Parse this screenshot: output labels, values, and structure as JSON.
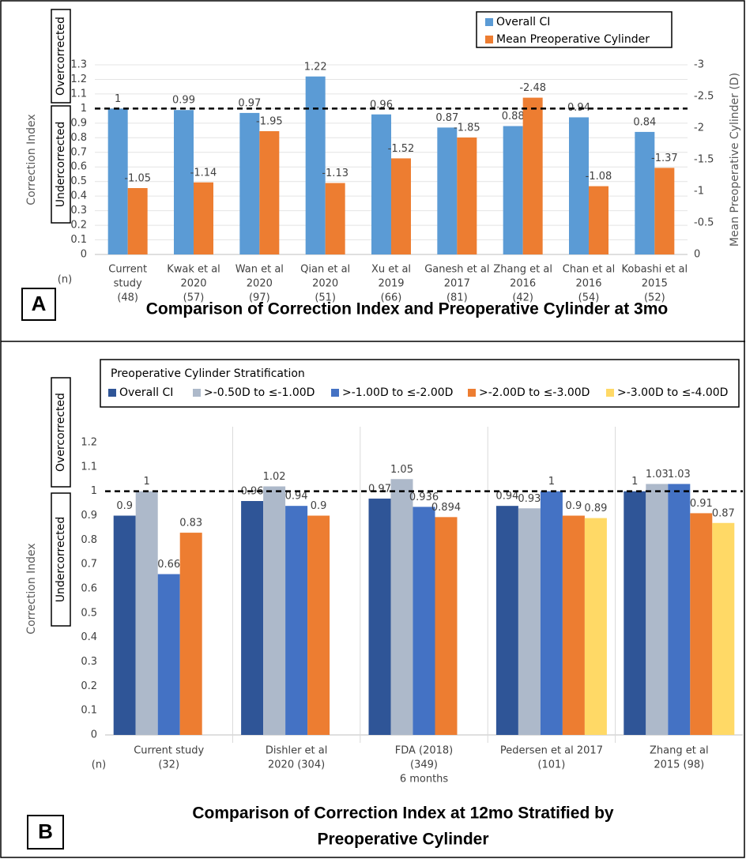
{
  "chart_data": [
    {
      "type": "bar",
      "panel_label": "A",
      "title": "Comparison of Correction Index and Preoperative Cylinder at 3mo",
      "y_label": "Correction Index",
      "y2_label": "Mean Preoperative Cylinder (D)",
      "n_label": "(n)",
      "annotations": [
        "Overcorrected",
        "Undercorrected"
      ],
      "reference_line": 1,
      "categories": [
        [
          "Current",
          "study",
          "(48)"
        ],
        [
          "Kwak et al",
          "2020",
          "(57)"
        ],
        [
          "Wan et al",
          "2020",
          "(97)"
        ],
        [
          "Qian et al",
          "2020",
          "(51)"
        ],
        [
          "Xu et al",
          "2019",
          "(66)"
        ],
        [
          "Ganesh et al",
          "2017",
          "(81)"
        ],
        [
          "Zhang et al",
          "2016",
          "(42)"
        ],
        [
          "Chan et al",
          "2016",
          "(54)"
        ],
        [
          "Kobashi et al",
          "2015",
          "(52)"
        ]
      ],
      "series": [
        {
          "name": "Overall CI",
          "color": "#5b9bd5",
          "values": [
            1,
            0.99,
            0.97,
            1.22,
            0.96,
            0.87,
            0.88,
            0.94,
            0.84
          ]
        },
        {
          "name": "Mean Preoperative Cylinder",
          "color": "#ed7d31",
          "axis": "y2",
          "values": [
            -1.05,
            -1.14,
            -1.95,
            -1.13,
            -1.52,
            -1.85,
            -2.48,
            -1.08,
            -1.37
          ]
        }
      ],
      "ylim": [
        0,
        1.3
      ],
      "yticks": [
        0,
        0.1,
        0.2,
        0.3,
        0.4,
        0.5,
        0.6,
        0.7,
        0.8,
        0.9,
        1,
        1.1,
        1.2,
        1.3
      ],
      "y2lim": [
        0,
        -3
      ],
      "y2ticks": [
        0,
        -0.5,
        -1,
        -1.5,
        -2,
        -2.5,
        -3
      ],
      "grid": true,
      "legend": "top-right"
    },
    {
      "type": "bar",
      "panel_label": "B",
      "title": [
        "Comparison of Correction Index at 12mo Stratified by",
        "Preoperative Cylinder"
      ],
      "y_label": "Correction Index",
      "n_label": "(n)",
      "annotations": [
        "Overcorrected",
        "Undercorrected"
      ],
      "reference_line": 1,
      "legend_title": "Preoperative Cylinder Stratification",
      "categories": [
        [
          "Current study",
          "(32)"
        ],
        [
          "Dishler et al",
          "2020 (304)"
        ],
        [
          "FDA (2018)",
          "(349)",
          "6 months"
        ],
        [
          "Pedersen et al 2017",
          "(101)"
        ],
        [
          "Zhang et al",
          "2015 (98)"
        ]
      ],
      "series": [
        {
          "name": "Overall CI",
          "color": "#2f5597",
          "values": [
            0.9,
            0.96,
            0.97,
            0.94,
            1
          ]
        },
        {
          "name": ">-0.50D to ≤-1.00D",
          "color": "#adb9ca",
          "values": [
            1,
            1.02,
            1.05,
            0.93,
            1.03
          ]
        },
        {
          "name": ">-1.00D to ≤-2.00D",
          "color": "#4472c4",
          "values": [
            0.66,
            0.94,
            0.936,
            1,
            1.03
          ]
        },
        {
          "name": ">-2.00D to ≤-3.00D",
          "color": "#ed7d31",
          "values": [
            0.83,
            0.9,
            0.894,
            0.9,
            0.91
          ]
        },
        {
          "name": ">-3.00D to ≤-4.00D",
          "color": "#ffd966",
          "values": [
            null,
            null,
            null,
            0.89,
            0.87
          ]
        }
      ],
      "ylim": [
        0,
        1.2
      ],
      "yticks": [
        0,
        0.1,
        0.2,
        0.3,
        0.4,
        0.5,
        0.6,
        0.7,
        0.8,
        0.9,
        1,
        1.1,
        1.2
      ],
      "grid": false,
      "legend": "top"
    }
  ]
}
